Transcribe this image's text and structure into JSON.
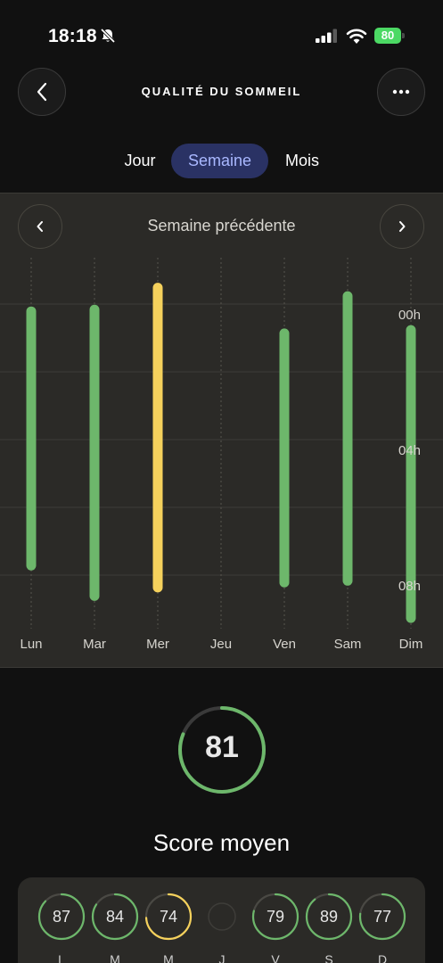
{
  "status": {
    "time": "18:18",
    "battery": "80"
  },
  "header": {
    "title": "QUALITÉ DU SOMMEIL"
  },
  "tabs": [
    {
      "label": "Jour",
      "active": false
    },
    {
      "label": "Semaine",
      "active": true
    },
    {
      "label": "Mois",
      "active": false
    }
  ],
  "week_nav": {
    "label": "Semaine précédente"
  },
  "chart_data": {
    "type": "bar",
    "categories": [
      "Lun",
      "Mar",
      "Mer",
      "Jeu",
      "Ven",
      "Sam",
      "Dim"
    ],
    "y_tick_labels": [
      "00h",
      "04h",
      "08h"
    ],
    "y_ticks_hours": [
      0,
      4,
      8
    ],
    "series": [
      {
        "start_hours": [
          -0.1,
          -0.15,
          -0.8,
          null,
          0.55,
          -0.55,
          0.45
        ],
        "end_hours": [
          7.4,
          8.3,
          8.05,
          null,
          7.9,
          7.85,
          8.95
        ],
        "colors": [
          "#6db76b",
          "#6db76b",
          "#f5d15c",
          null,
          "#6db76b",
          "#6db76b",
          "#6db76b"
        ]
      }
    ],
    "grid": true
  },
  "summary": {
    "score": "81",
    "score_fraction": 0.81,
    "title": "Score moyen"
  },
  "days": [
    {
      "letter": "L",
      "score": "87",
      "fraction": 0.87,
      "color": "#6db76b"
    },
    {
      "letter": "M",
      "score": "84",
      "fraction": 0.84,
      "color": "#6db76b"
    },
    {
      "letter": "M",
      "score": "74",
      "fraction": 0.74,
      "color": "#f5d15c"
    },
    {
      "letter": "J",
      "score": "",
      "fraction": 0,
      "color": "#3a3a3a"
    },
    {
      "letter": "V",
      "score": "79",
      "fraction": 0.79,
      "color": "#6db76b"
    },
    {
      "letter": "S",
      "score": "89",
      "fraction": 0.89,
      "color": "#6db76b"
    },
    {
      "letter": "D",
      "score": "77",
      "fraction": 0.77,
      "color": "#6db76b"
    }
  ],
  "colors": {
    "good": "#6db76b",
    "warning": "#f5d15c",
    "accent": "#2a3264"
  }
}
